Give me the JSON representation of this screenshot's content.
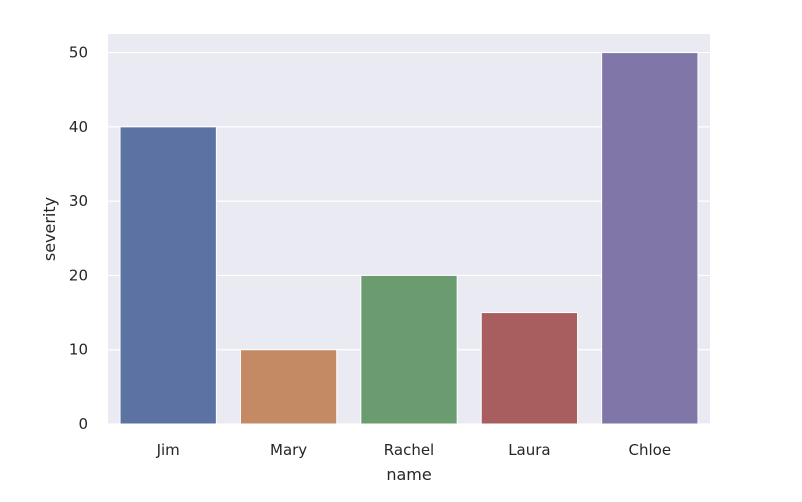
{
  "chart_data": {
    "type": "bar",
    "title": "",
    "xlabel": "name",
    "ylabel": "severity",
    "categories": [
      "Jim",
      "Mary",
      "Rachel",
      "Laura",
      "Chloe"
    ],
    "values": [
      40,
      10,
      20,
      15,
      50
    ],
    "colors": [
      "#5c72a3",
      "#c48a63",
      "#6a9c6f",
      "#a85e5f",
      "#8077a8"
    ],
    "yticks": [
      0,
      10,
      20,
      30,
      40,
      50
    ],
    "ylim": [
      0,
      52.5
    ],
    "grid": true,
    "background": "#eaeaf2",
    "grid_color": "#ffffff",
    "legend": "none"
  }
}
